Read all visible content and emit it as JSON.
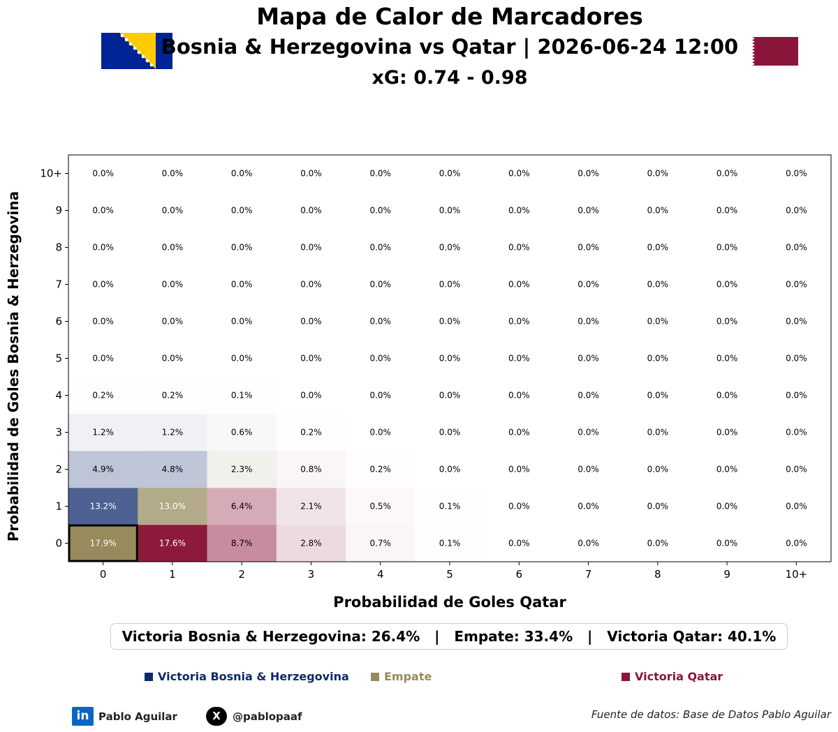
{
  "header": {
    "title": "Mapa de Calor de Marcadores",
    "subtitle": "Bosnia & Herzegovina vs Qatar | 2026-06-24 12:00",
    "xg": "xG: 0.74 - 0.98",
    "home_flag_icon": "bosnia-herzegovina-flag-icon",
    "away_flag_icon": "qatar-flag-icon"
  },
  "colors": {
    "home": "#0e2a6b",
    "draw": "#978a5c",
    "away": "#8b1538",
    "cell_text_dark": "#000000",
    "cell_text_light": "#ffffff"
  },
  "chart_data": {
    "type": "heatmap",
    "title": "Mapa de Calor de Marcadores",
    "xlabel": "Probabilidad de Goles Qatar",
    "ylabel": "Probabilidad de Goles Bosnia & Herzegovina",
    "x_categories": [
      "0",
      "1",
      "2",
      "3",
      "4",
      "5",
      "6",
      "7",
      "8",
      "9",
      "10+"
    ],
    "y_categories": [
      "0",
      "1",
      "2",
      "3",
      "4",
      "5",
      "6",
      "7",
      "8",
      "9",
      "10+"
    ],
    "unit": "%",
    "values": [
      [
        17.9,
        17.6,
        8.7,
        2.8,
        0.7,
        0.1,
        0.0,
        0.0,
        0.0,
        0.0,
        0.0
      ],
      [
        13.2,
        13.0,
        6.4,
        2.1,
        0.5,
        0.1,
        0.0,
        0.0,
        0.0,
        0.0,
        0.0
      ],
      [
        4.9,
        4.8,
        2.3,
        0.8,
        0.2,
        0.0,
        0.0,
        0.0,
        0.0,
        0.0,
        0.0
      ],
      [
        1.2,
        1.2,
        0.6,
        0.2,
        0.0,
        0.0,
        0.0,
        0.0,
        0.0,
        0.0,
        0.0
      ],
      [
        0.2,
        0.2,
        0.1,
        0.0,
        0.0,
        0.0,
        0.0,
        0.0,
        0.0,
        0.0,
        0.0
      ],
      [
        0.0,
        0.0,
        0.0,
        0.0,
        0.0,
        0.0,
        0.0,
        0.0,
        0.0,
        0.0,
        0.0
      ],
      [
        0.0,
        0.0,
        0.0,
        0.0,
        0.0,
        0.0,
        0.0,
        0.0,
        0.0,
        0.0,
        0.0
      ],
      [
        0.0,
        0.0,
        0.0,
        0.0,
        0.0,
        0.0,
        0.0,
        0.0,
        0.0,
        0.0,
        0.0
      ],
      [
        0.0,
        0.0,
        0.0,
        0.0,
        0.0,
        0.0,
        0.0,
        0.0,
        0.0,
        0.0,
        0.0
      ],
      [
        0.0,
        0.0,
        0.0,
        0.0,
        0.0,
        0.0,
        0.0,
        0.0,
        0.0,
        0.0,
        0.0
      ],
      [
        0.0,
        0.0,
        0.0,
        0.0,
        0.0,
        0.0,
        0.0,
        0.0,
        0.0,
        0.0,
        0.0
      ]
    ],
    "most_likely_score": [
      0,
      0
    ],
    "grid": false
  },
  "summary": {
    "home_win": "Victoria Bosnia & Herzegovina: 26.4%",
    "separator": "   |   ",
    "draw": "Empate: 33.4%",
    "away_win": "Victoria Qatar: 40.1%"
  },
  "legend": {
    "home": "Victoria Bosnia & Herzegovina",
    "draw": "Empate",
    "away": "Victoria Qatar"
  },
  "footer": {
    "linkedin_icon": "linkedin-icon",
    "linkedin_label": "in",
    "author": "Pablo Aguilar",
    "x_icon": "x-twitter-icon",
    "x_label": "X",
    "handle": "@pablopaaf",
    "source": "Fuente de datos: Base de Datos Pablo Aguilar"
  }
}
